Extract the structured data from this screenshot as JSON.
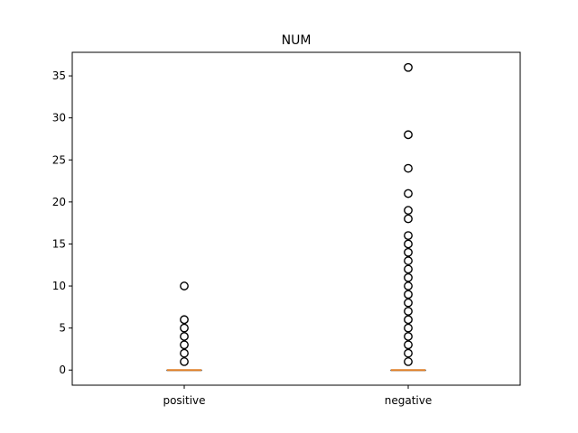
{
  "chart_data": {
    "type": "box",
    "title": "NUM",
    "xlabel": "",
    "ylabel": "",
    "categories": [
      "positive",
      "negative"
    ],
    "ylim": [
      -1.8,
      37.8
    ],
    "yticks": [
      0,
      5,
      10,
      15,
      20,
      25,
      30,
      35
    ],
    "grid": false,
    "boxes": [
      {
        "name": "positive",
        "q1": 0,
        "median": 0,
        "q3": 0,
        "whisker_low": 0,
        "whisker_high": 0,
        "outliers": [
          1,
          2,
          3,
          4,
          5,
          6,
          10
        ]
      },
      {
        "name": "negative",
        "q1": 0,
        "median": 0,
        "q3": 0,
        "whisker_low": 0,
        "whisker_high": 0,
        "outliers": [
          1,
          2,
          3,
          4,
          5,
          6,
          7,
          8,
          9,
          10,
          11,
          12,
          13,
          14,
          15,
          16,
          18,
          19,
          21,
          24,
          28,
          36
        ]
      }
    ],
    "colors": {
      "median": "#e08028",
      "box": "#000000",
      "outlier_edge": "#000000"
    }
  }
}
